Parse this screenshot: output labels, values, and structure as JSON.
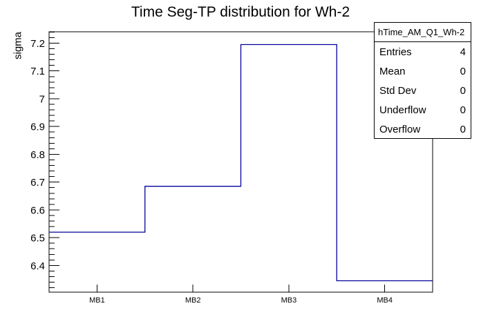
{
  "title": "Time Seg-TP distribution for Wh-2",
  "chart_data": {
    "type": "step-histogram",
    "title": "Time Seg-TP distribution for Wh-2",
    "xlabel": "",
    "ylabel": "sigma",
    "categories": [
      "MB1",
      "MB2",
      "MB3",
      "MB4"
    ],
    "values": [
      6.52,
      6.685,
      7.195,
      6.345
    ],
    "ylim": [
      6.304,
      7.241
    ],
    "y_ticks": [
      {
        "value": 6.4,
        "label": "6.4"
      },
      {
        "value": 6.5,
        "label": "6.5"
      },
      {
        "value": 6.6,
        "label": "6.6"
      },
      {
        "value": 6.7,
        "label": "6.7"
      },
      {
        "value": 6.8,
        "label": "6.8"
      },
      {
        "value": 6.9,
        "label": "6.9"
      },
      {
        "value": 7.0,
        "label": "7"
      },
      {
        "value": 7.1,
        "label": "7.1"
      },
      {
        "value": 7.2,
        "label": "7.2"
      }
    ],
    "y_minor_step": 0.02,
    "grid": false,
    "line_color": "#000099",
    "frame_color": "#000000",
    "legend_position": "top-right"
  },
  "stats_box": {
    "title": "hTime_AM_Q1_Wh-2",
    "rows": [
      {
        "label": "Entries",
        "value": "4"
      },
      {
        "label": "Mean",
        "value": "0"
      },
      {
        "label": "Std Dev",
        "value": "0"
      },
      {
        "label": "Underflow",
        "value": "0"
      },
      {
        "label": "Overflow",
        "value": "0"
      }
    ]
  }
}
